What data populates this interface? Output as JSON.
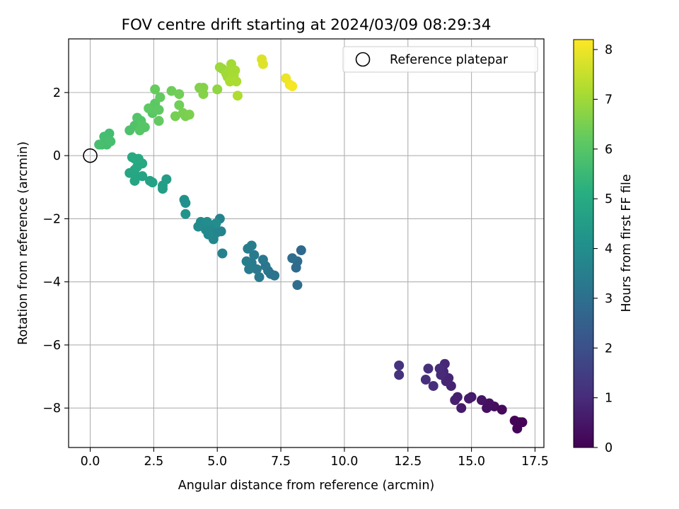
{
  "chart_data": {
    "type": "scatter",
    "title": "FOV centre drift starting at 2024/03/09 08:29:34",
    "xlabel": "Angular distance from reference (arcmin)",
    "ylabel": "Rotation from reference (arcmin)",
    "xlim": [
      -0.85,
      17.85
    ],
    "ylim": [
      -9.25,
      3.7
    ],
    "xticks": [
      0.0,
      2.5,
      5.0,
      7.5,
      10.0,
      12.5,
      15.0,
      17.5
    ],
    "xtick_labels": [
      "0.0",
      "2.5",
      "5.0",
      "7.5",
      "10.0",
      "12.5",
      "15.0",
      "17.5"
    ],
    "yticks": [
      -8,
      -6,
      -4,
      -2,
      0,
      2
    ],
    "ytick_labels": [
      "−8",
      "−6",
      "−4",
      "−2",
      "0",
      "2"
    ],
    "grid": true,
    "legend_position": "top-right",
    "colormap": "viridis",
    "colorbar": {
      "label": "Hours from first FF file",
      "range": [
        0,
        8.2
      ],
      "ticks": [
        0,
        1,
        2,
        3,
        4,
        5,
        6,
        7,
        8
      ],
      "tick_labels": [
        "0",
        "1",
        "2",
        "3",
        "4",
        "5",
        "6",
        "7",
        "8"
      ]
    },
    "reference": {
      "label": "Reference platepar",
      "x": 0.0,
      "y": 0.0
    },
    "points": [
      {
        "x": 16.9,
        "y": -8.45,
        "h": 0.05
      },
      {
        "x": 17.0,
        "y": -8.45,
        "h": 0.05
      },
      {
        "x": 16.8,
        "y": -8.65,
        "h": 0.1
      },
      {
        "x": 16.7,
        "y": -8.4,
        "h": 0.1
      },
      {
        "x": 16.2,
        "y": -8.05,
        "h": 0.2
      },
      {
        "x": 15.9,
        "y": -7.95,
        "h": 0.3
      },
      {
        "x": 15.7,
        "y": -7.85,
        "h": 0.35
      },
      {
        "x": 15.6,
        "y": -8.0,
        "h": 0.35
      },
      {
        "x": 15.4,
        "y": -7.75,
        "h": 0.45
      },
      {
        "x": 15.0,
        "y": -7.65,
        "h": 0.55
      },
      {
        "x": 14.9,
        "y": -7.7,
        "h": 0.6
      },
      {
        "x": 14.6,
        "y": -8.0,
        "h": 0.6
      },
      {
        "x": 14.45,
        "y": -7.65,
        "h": 0.7
      },
      {
        "x": 14.35,
        "y": -7.75,
        "h": 0.7
      },
      {
        "x": 14.2,
        "y": -7.3,
        "h": 0.8
      },
      {
        "x": 14.1,
        "y": -7.05,
        "h": 0.85
      },
      {
        "x": 14.0,
        "y": -7.15,
        "h": 0.85
      },
      {
        "x": 13.9,
        "y": -6.85,
        "h": 0.9
      },
      {
        "x": 13.95,
        "y": -6.6,
        "h": 0.9
      },
      {
        "x": 13.8,
        "y": -6.95,
        "h": 0.95
      },
      {
        "x": 13.75,
        "y": -6.75,
        "h": 1.0
      },
      {
        "x": 13.5,
        "y": -7.3,
        "h": 1.05
      },
      {
        "x": 13.3,
        "y": -6.75,
        "h": 1.1
      },
      {
        "x": 13.2,
        "y": -7.1,
        "h": 1.1
      },
      {
        "x": 12.15,
        "y": -6.65,
        "h": 1.2
      },
      {
        "x": 12.15,
        "y": -6.95,
        "h": 1.2
      },
      {
        "x": 8.3,
        "y": -3.0,
        "h": 2.8
      },
      {
        "x": 8.15,
        "y": -3.35,
        "h": 2.85
      },
      {
        "x": 8.1,
        "y": -3.55,
        "h": 2.85
      },
      {
        "x": 7.95,
        "y": -3.25,
        "h": 2.9
      },
      {
        "x": 8.15,
        "y": -4.1,
        "h": 2.9
      },
      {
        "x": 7.25,
        "y": -3.8,
        "h": 3.1
      },
      {
        "x": 7.1,
        "y": -3.75,
        "h": 3.15
      },
      {
        "x": 7.0,
        "y": -3.65,
        "h": 3.15
      },
      {
        "x": 6.9,
        "y": -3.5,
        "h": 3.2
      },
      {
        "x": 6.8,
        "y": -3.3,
        "h": 3.25
      },
      {
        "x": 6.65,
        "y": -3.85,
        "h": 3.3
      },
      {
        "x": 6.55,
        "y": -3.6,
        "h": 3.3
      },
      {
        "x": 6.45,
        "y": -3.15,
        "h": 3.35
      },
      {
        "x": 6.35,
        "y": -3.4,
        "h": 3.35
      },
      {
        "x": 6.25,
        "y": -3.6,
        "h": 3.4
      },
      {
        "x": 6.2,
        "y": -2.95,
        "h": 3.4
      },
      {
        "x": 6.35,
        "y": -2.85,
        "h": 3.45
      },
      {
        "x": 6.15,
        "y": -3.35,
        "h": 3.45
      },
      {
        "x": 5.2,
        "y": -3.1,
        "h": 3.6
      },
      {
        "x": 5.15,
        "y": -2.4,
        "h": 3.65
      },
      {
        "x": 5.1,
        "y": -2.0,
        "h": 3.65
      },
      {
        "x": 4.95,
        "y": -2.45,
        "h": 3.7
      },
      {
        "x": 4.85,
        "y": -2.65,
        "h": 3.75
      },
      {
        "x": 4.75,
        "y": -2.25,
        "h": 3.75
      },
      {
        "x": 4.65,
        "y": -2.5,
        "h": 3.8
      },
      {
        "x": 4.55,
        "y": -2.35,
        "h": 3.85
      },
      {
        "x": 4.45,
        "y": -2.2,
        "h": 3.85
      },
      {
        "x": 4.35,
        "y": -2.1,
        "h": 3.9
      },
      {
        "x": 4.25,
        "y": -2.25,
        "h": 3.9
      },
      {
        "x": 4.6,
        "y": -2.1,
        "h": 3.95
      },
      {
        "x": 4.95,
        "y": -2.15,
        "h": 3.95
      },
      {
        "x": 3.7,
        "y": -1.4,
        "h": 4.15
      },
      {
        "x": 3.75,
        "y": -1.5,
        "h": 4.15
      },
      {
        "x": 3.75,
        "y": -1.85,
        "h": 4.2
      },
      {
        "x": 3.0,
        "y": -0.75,
        "h": 4.5
      },
      {
        "x": 2.85,
        "y": -1.05,
        "h": 4.55
      },
      {
        "x": 2.85,
        "y": -0.95,
        "h": 4.55
      },
      {
        "x": 2.45,
        "y": -0.85,
        "h": 4.65
      },
      {
        "x": 2.35,
        "y": -0.8,
        "h": 4.7
      },
      {
        "x": 2.05,
        "y": -0.65,
        "h": 4.75
      },
      {
        "x": 1.8,
        "y": -0.65,
        "h": 4.8
      },
      {
        "x": 1.75,
        "y": -0.8,
        "h": 4.8
      },
      {
        "x": 1.55,
        "y": -0.55,
        "h": 4.85
      },
      {
        "x": 1.75,
        "y": -0.45,
        "h": 4.85
      },
      {
        "x": 1.85,
        "y": -0.35,
        "h": 4.9
      },
      {
        "x": 1.95,
        "y": -0.2,
        "h": 4.9
      },
      {
        "x": 2.05,
        "y": -0.25,
        "h": 4.9
      },
      {
        "x": 1.9,
        "y": -0.1,
        "h": 4.95
      },
      {
        "x": 1.75,
        "y": -0.1,
        "h": 4.95
      },
      {
        "x": 1.65,
        "y": -0.05,
        "h": 5.0
      },
      {
        "x": 0.45,
        "y": 0.35,
        "h": 5.6
      },
      {
        "x": 0.6,
        "y": 0.5,
        "h": 5.6
      },
      {
        "x": 0.7,
        "y": 0.55,
        "h": 5.65
      },
      {
        "x": 0.75,
        "y": 0.7,
        "h": 5.65
      },
      {
        "x": 0.55,
        "y": 0.6,
        "h": 5.7
      },
      {
        "x": 0.65,
        "y": 0.35,
        "h": 5.7
      },
      {
        "x": 0.8,
        "y": 0.45,
        "h": 5.75
      },
      {
        "x": 0.35,
        "y": 0.35,
        "h": 5.75
      },
      {
        "x": 1.55,
        "y": 0.8,
        "h": 5.85
      },
      {
        "x": 1.75,
        "y": 0.95,
        "h": 5.9
      },
      {
        "x": 1.9,
        "y": 1.05,
        "h": 5.9
      },
      {
        "x": 1.85,
        "y": 1.2,
        "h": 5.95
      },
      {
        "x": 2.0,
        "y": 1.1,
        "h": 5.95
      },
      {
        "x": 1.95,
        "y": 0.8,
        "h": 6.0
      },
      {
        "x": 2.05,
        "y": 0.95,
        "h": 6.0
      },
      {
        "x": 2.15,
        "y": 0.9,
        "h": 6.0
      },
      {
        "x": 2.45,
        "y": 1.35,
        "h": 6.05
      },
      {
        "x": 2.5,
        "y": 1.45,
        "h": 6.1
      },
      {
        "x": 2.55,
        "y": 1.65,
        "h": 6.1
      },
      {
        "x": 2.3,
        "y": 1.5,
        "h": 6.15
      },
      {
        "x": 2.7,
        "y": 1.45,
        "h": 6.15
      },
      {
        "x": 2.7,
        "y": 1.1,
        "h": 6.2
      },
      {
        "x": 2.75,
        "y": 1.85,
        "h": 6.2
      },
      {
        "x": 2.55,
        "y": 2.1,
        "h": 6.25
      },
      {
        "x": 3.2,
        "y": 2.05,
        "h": 6.35
      },
      {
        "x": 3.5,
        "y": 1.95,
        "h": 6.4
      },
      {
        "x": 3.5,
        "y": 1.6,
        "h": 6.4
      },
      {
        "x": 3.35,
        "y": 1.25,
        "h": 6.45
      },
      {
        "x": 3.65,
        "y": 1.35,
        "h": 6.5
      },
      {
        "x": 3.75,
        "y": 1.25,
        "h": 6.5
      },
      {
        "x": 3.9,
        "y": 1.3,
        "h": 6.55
      },
      {
        "x": 4.3,
        "y": 2.15,
        "h": 6.6
      },
      {
        "x": 4.45,
        "y": 2.15,
        "h": 6.65
      },
      {
        "x": 4.45,
        "y": 1.95,
        "h": 6.65
      },
      {
        "x": 5.0,
        "y": 2.1,
        "h": 6.8
      },
      {
        "x": 5.1,
        "y": 2.8,
        "h": 6.95
      },
      {
        "x": 5.2,
        "y": 2.75,
        "h": 6.95
      },
      {
        "x": 5.35,
        "y": 2.6,
        "h": 7.0
      },
      {
        "x": 5.4,
        "y": 2.5,
        "h": 7.0
      },
      {
        "x": 5.5,
        "y": 2.7,
        "h": 7.05
      },
      {
        "x": 5.55,
        "y": 2.9,
        "h": 7.05
      },
      {
        "x": 5.65,
        "y": 2.55,
        "h": 7.1
      },
      {
        "x": 5.7,
        "y": 2.7,
        "h": 7.1
      },
      {
        "x": 5.75,
        "y": 2.35,
        "h": 7.15
      },
      {
        "x": 5.5,
        "y": 2.35,
        "h": 7.15
      },
      {
        "x": 5.8,
        "y": 1.9,
        "h": 7.2
      },
      {
        "x": 6.75,
        "y": 3.05,
        "h": 7.75
      },
      {
        "x": 6.8,
        "y": 2.9,
        "h": 7.8
      },
      {
        "x": 7.7,
        "y": 2.45,
        "h": 8.0
      },
      {
        "x": 7.85,
        "y": 2.25,
        "h": 8.05
      },
      {
        "x": 7.95,
        "y": 2.2,
        "h": 8.1
      }
    ]
  }
}
